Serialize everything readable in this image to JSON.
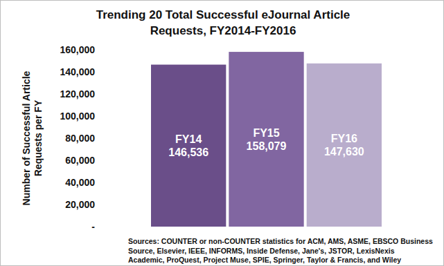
{
  "chart_data": {
    "type": "bar",
    "title": [
      "Trending 20 Total Successful eJournal Article",
      "Requests, FY2014-FY2016"
    ],
    "y_label": [
      "Number of Successful Article",
      "Requests per FY"
    ],
    "categories": [
      "FY14",
      "FY15",
      "FY16"
    ],
    "values": [
      146536,
      158079,
      147630
    ],
    "value_labels": [
      "146,536",
      "158,079",
      "147,630"
    ],
    "colors": [
      "#6a4e89",
      "#8166a1",
      "#b9adcc"
    ],
    "data_labels": true,
    "grid": false,
    "ylim": [
      0,
      160000
    ],
    "yticks": [
      {
        "value": 0,
        "label": "-"
      },
      {
        "value": 20000,
        "label": "20,000"
      },
      {
        "value": 40000,
        "label": "40,000"
      },
      {
        "value": 60000,
        "label": "60,000"
      },
      {
        "value": 80000,
        "label": "80,000"
      },
      {
        "value": 100000,
        "label": "100,000"
      },
      {
        "value": 120000,
        "label": "120,000"
      },
      {
        "value": 140000,
        "label": "140,000"
      },
      {
        "value": 160000,
        "label": "160,000"
      }
    ],
    "sources": [
      "Sources:  COUNTER or non-COUNTER statistics for ACM, AMS, ASME, EBSCO Business",
      "Source,  Elsevier, IEEE, INFORMS, Inside Defense, Jane's, JSTOR, LexisNexis",
      "Academic, ProQuest, Project Muse, SPIE, Springer, Taylor & Francis, and Wiley"
    ]
  }
}
